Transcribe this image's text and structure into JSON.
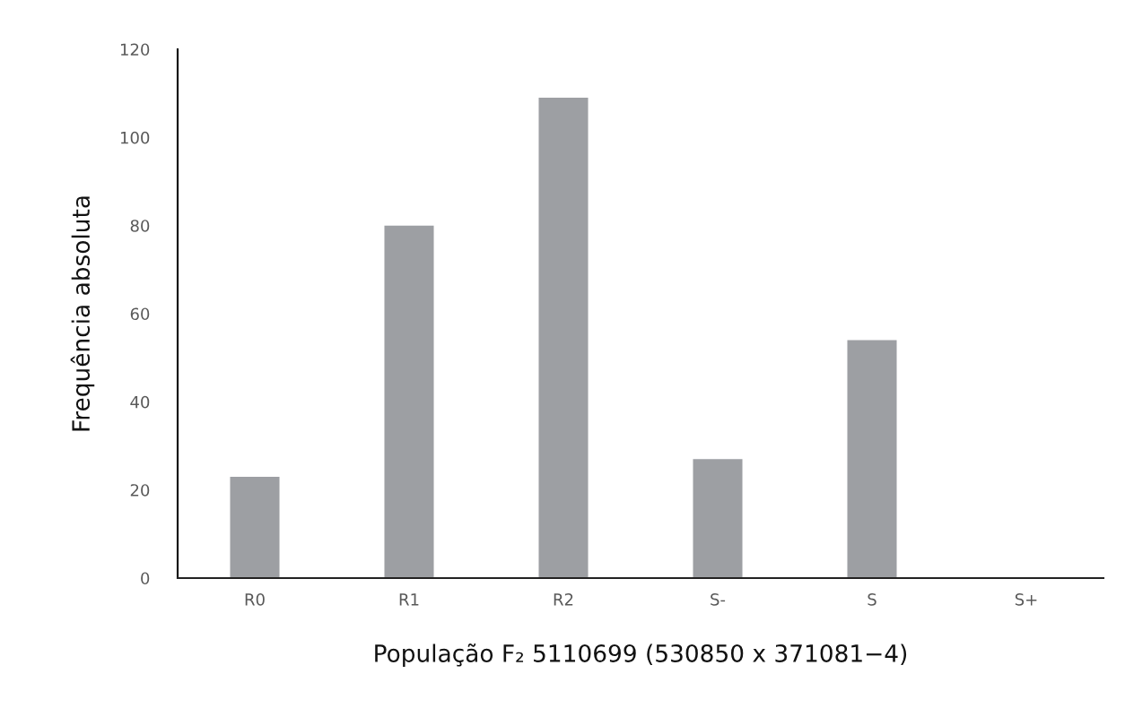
{
  "chart_data": {
    "type": "bar",
    "xlabel": "População F₂ 5110699 (530850 x 371081−4)",
    "ylabel": "Frequência absoluta",
    "categories": [
      "R0",
      "R1",
      "R2",
      "S-",
      "S",
      "S+"
    ],
    "values": [
      23,
      80,
      109,
      27,
      54,
      0
    ],
    "color": "#9d9fa3",
    "ylim": [
      0,
      120
    ],
    "yticks": [
      0,
      20,
      40,
      60,
      80,
      100,
      120
    ],
    "grid": false,
    "legend": false
  }
}
